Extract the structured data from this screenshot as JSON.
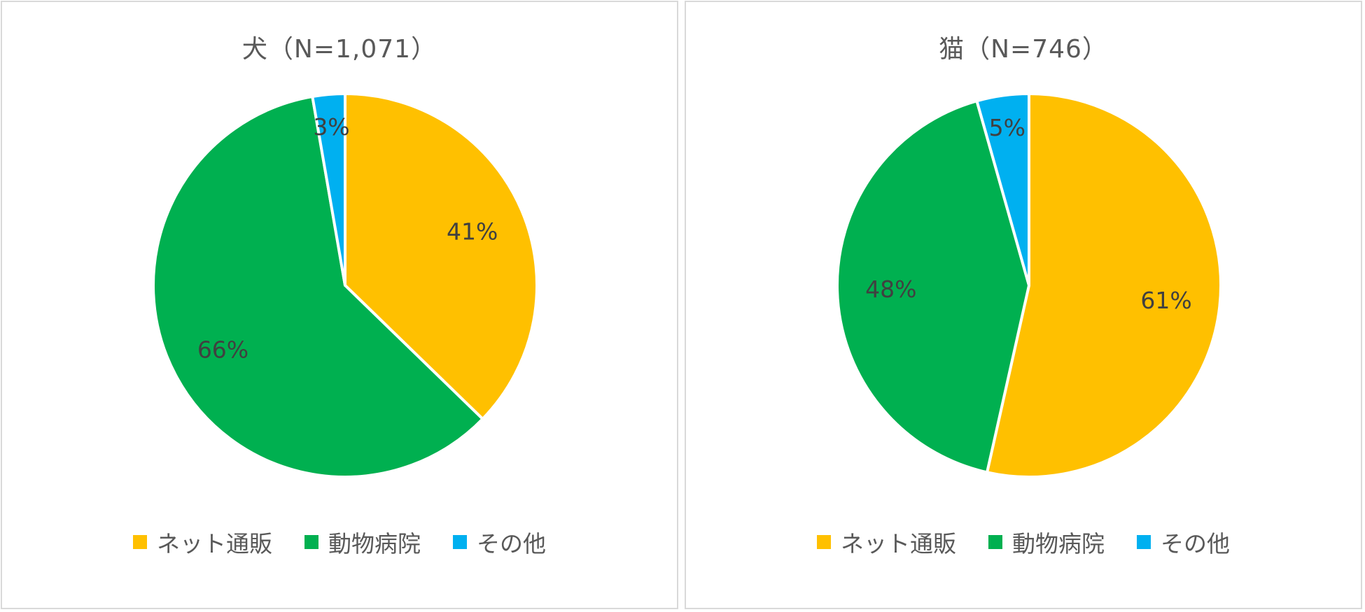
{
  "chart_data": [
    {
      "type": "pie",
      "title": "犬（N=1,071）",
      "legend_position": "bottom",
      "slices": [
        {
          "label": "ネット通販",
          "value": 41,
          "color": "#FFC000"
        },
        {
          "label": "動物病院",
          "value": 66,
          "color": "#00B050"
        },
        {
          "label": "その他",
          "value": 3,
          "color": "#00B0F0"
        }
      ]
    },
    {
      "type": "pie",
      "title": "猫（N=746）",
      "legend_position": "bottom",
      "slices": [
        {
          "label": "ネット通販",
          "value": 61,
          "color": "#FFC000"
        },
        {
          "label": "動物病院",
          "value": 48,
          "color": "#00B050"
        },
        {
          "label": "その他",
          "value": 5,
          "color": "#00B0F0"
        }
      ]
    }
  ]
}
